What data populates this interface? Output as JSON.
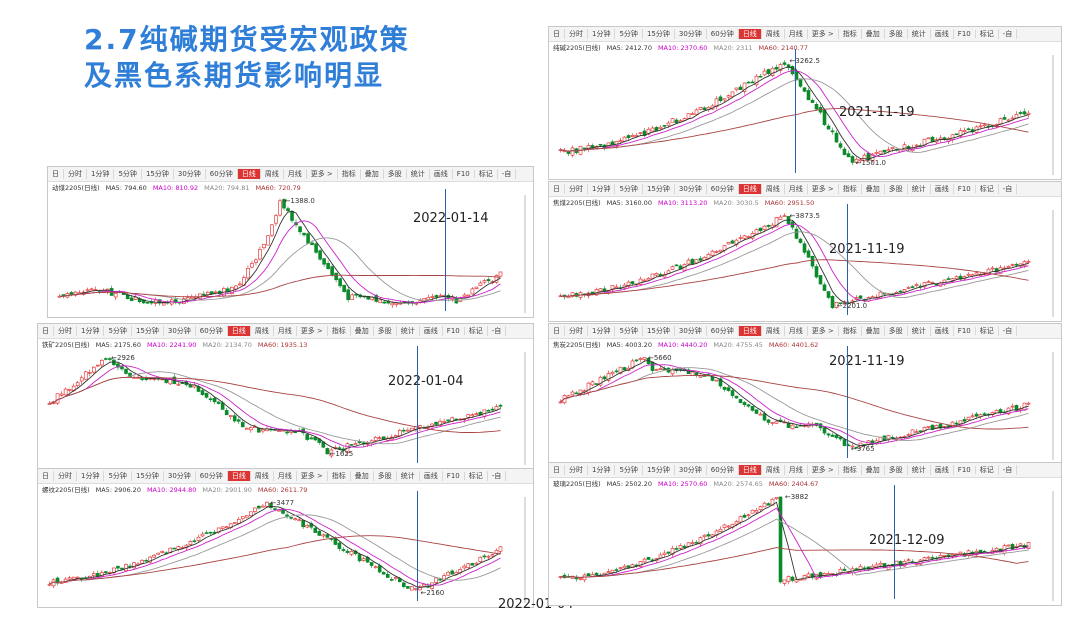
{
  "title": {
    "line1": "2.7纯碱期货受宏观政策",
    "line2": "及黑色系期货影响明显"
  },
  "toolbar": [
    "日",
    "分时",
    "1分钟",
    "5分钟",
    "15分钟",
    "30分钟",
    "60分钟",
    "日线",
    "周线",
    "月线",
    "更多 >",
    "指标",
    "叠加",
    "多股",
    "统计",
    "画线",
    "F10",
    "标记",
    "-自"
  ],
  "colors": {
    "up": "#e02020",
    "down": "#0a8a2a",
    "ma5": "#333333",
    "ma10": "#cc22cc",
    "ma20": "#999999",
    "ma60": "#aa4444",
    "event_line": "#2c5fa8"
  },
  "chart_data": [
    {
      "type": "candlestick",
      "contract": "纯碱2205",
      "panel": "top-right",
      "ma": {
        "MA5": "2412.70",
        "MA10": "2370.60",
        "MA20": "2311",
        "MA60": "2140.77"
      },
      "high": "3262.5",
      "low": "1501.0",
      "event_date": "2021-11-19"
    },
    {
      "type": "candlestick",
      "contract": "动煤2205",
      "panel": "mid-left",
      "ma": {
        "MA5": "794.60",
        "MA10": "810.92",
        "MA20": "794.81",
        "MA60": "720.79"
      },
      "high": "1388.0",
      "low": "",
      "event_date": "2022-01-14"
    },
    {
      "type": "candlestick",
      "contract": "焦煤2205",
      "panel": "mid-right",
      "ma": {
        "MA5": "3160.00",
        "MA10": "3113.20",
        "MA20": "3030.5",
        "MA60": "2951.50"
      },
      "high": "3873.5",
      "low": "2201.0",
      "event_date": "2021-11-19"
    },
    {
      "type": "candlestick",
      "contract": "铁矿2205",
      "panel": "lower-left",
      "ma": {
        "MA5": "2175.60",
        "MA10": "2241.90",
        "MA20": "2134.70",
        "MA60": "1935.13"
      },
      "high": "2926",
      "low": "1625",
      "event_date": "2022-01-04"
    },
    {
      "type": "candlestick",
      "contract": "焦炭2205",
      "panel": "lower-right",
      "ma": {
        "MA5": "4003.20",
        "MA10": "4440.20",
        "MA20": "4755.45",
        "MA60": "4401.62"
      },
      "high": "5660",
      "low": "3765",
      "event_date": "2021-11-19"
    },
    {
      "type": "candlestick",
      "contract": "螺纹2205",
      "panel": "bottom-left",
      "ma": {
        "MA5": "2906.20",
        "MA10": "2944.80",
        "MA20": "2901.90",
        "MA60": "2611.79"
      },
      "high": "3477",
      "low": "2160",
      "event_date": "2022-01-04"
    },
    {
      "type": "candlestick",
      "contract": "玻璃2205",
      "panel": "bottom-right",
      "ma": {
        "MA5": "2502.20",
        "MA10": "2570.60",
        "MA20": "2574.65",
        "MA60": "2404.67"
      },
      "high": "3882",
      "low": "",
      "event_date": "2021-12-09"
    }
  ]
}
